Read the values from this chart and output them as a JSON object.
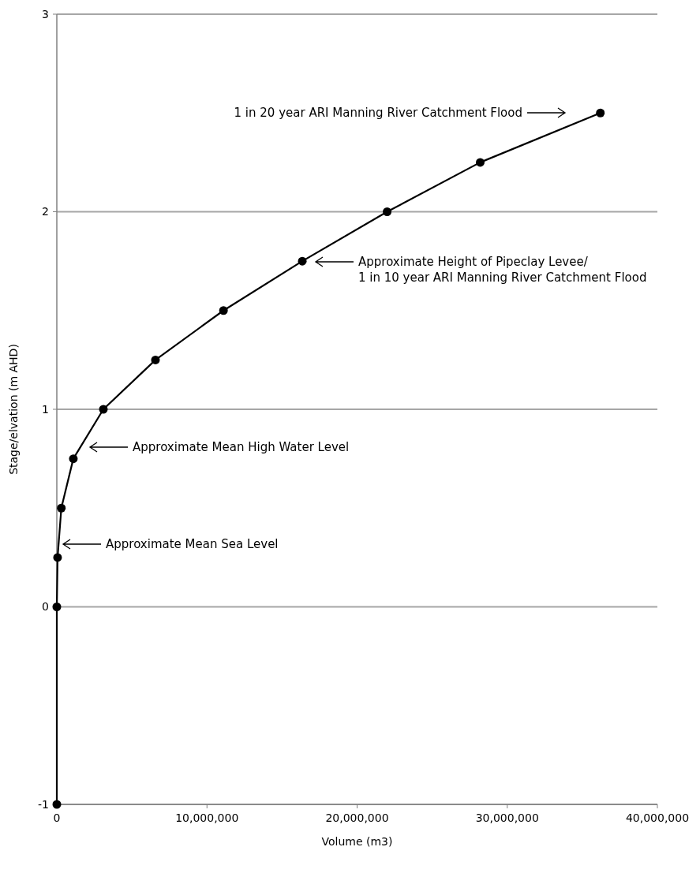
{
  "chart_data": {
    "type": "line",
    "xlabel": "Volume (m3)",
    "ylabel": "Stage/elvation (m AHD)",
    "x": [
      0,
      0,
      50000,
      300000,
      1100000,
      3100000,
      6570000,
      11100000,
      16350000,
      22000000,
      28200000,
      36200000
    ],
    "series": [
      {
        "color": "#000000",
        "values": [
          -1,
          0,
          0.25,
          0.5,
          0.75,
          1,
          1.25,
          1.5,
          1.75,
          2,
          2.25,
          2.5
        ]
      }
    ],
    "xlim": [
      0,
      40000000
    ],
    "xticks": [
      {
        "value": 0,
        "label": "0"
      },
      {
        "value": 10000000,
        "label": "10,000,000"
      },
      {
        "value": 20000000,
        "label": "20,000,000"
      },
      {
        "value": 30000000,
        "label": "30,000,000"
      },
      {
        "value": 40000000,
        "label": "40,000,000"
      }
    ],
    "ylim": [
      -1,
      3
    ],
    "yticks": [
      -1,
      0,
      1,
      2,
      3
    ],
    "grid": "y",
    "marker": "circle",
    "line_style": "solid",
    "annotations": [
      "1 in 20 year ARI Manning River Catchment Flood",
      "Approximate Height of Pipeclay Levee/\n1 in 10 year ARI Manning River Catchment Flood",
      "Approximate Mean High Water Level",
      "Approximate Mean Sea Level"
    ]
  }
}
